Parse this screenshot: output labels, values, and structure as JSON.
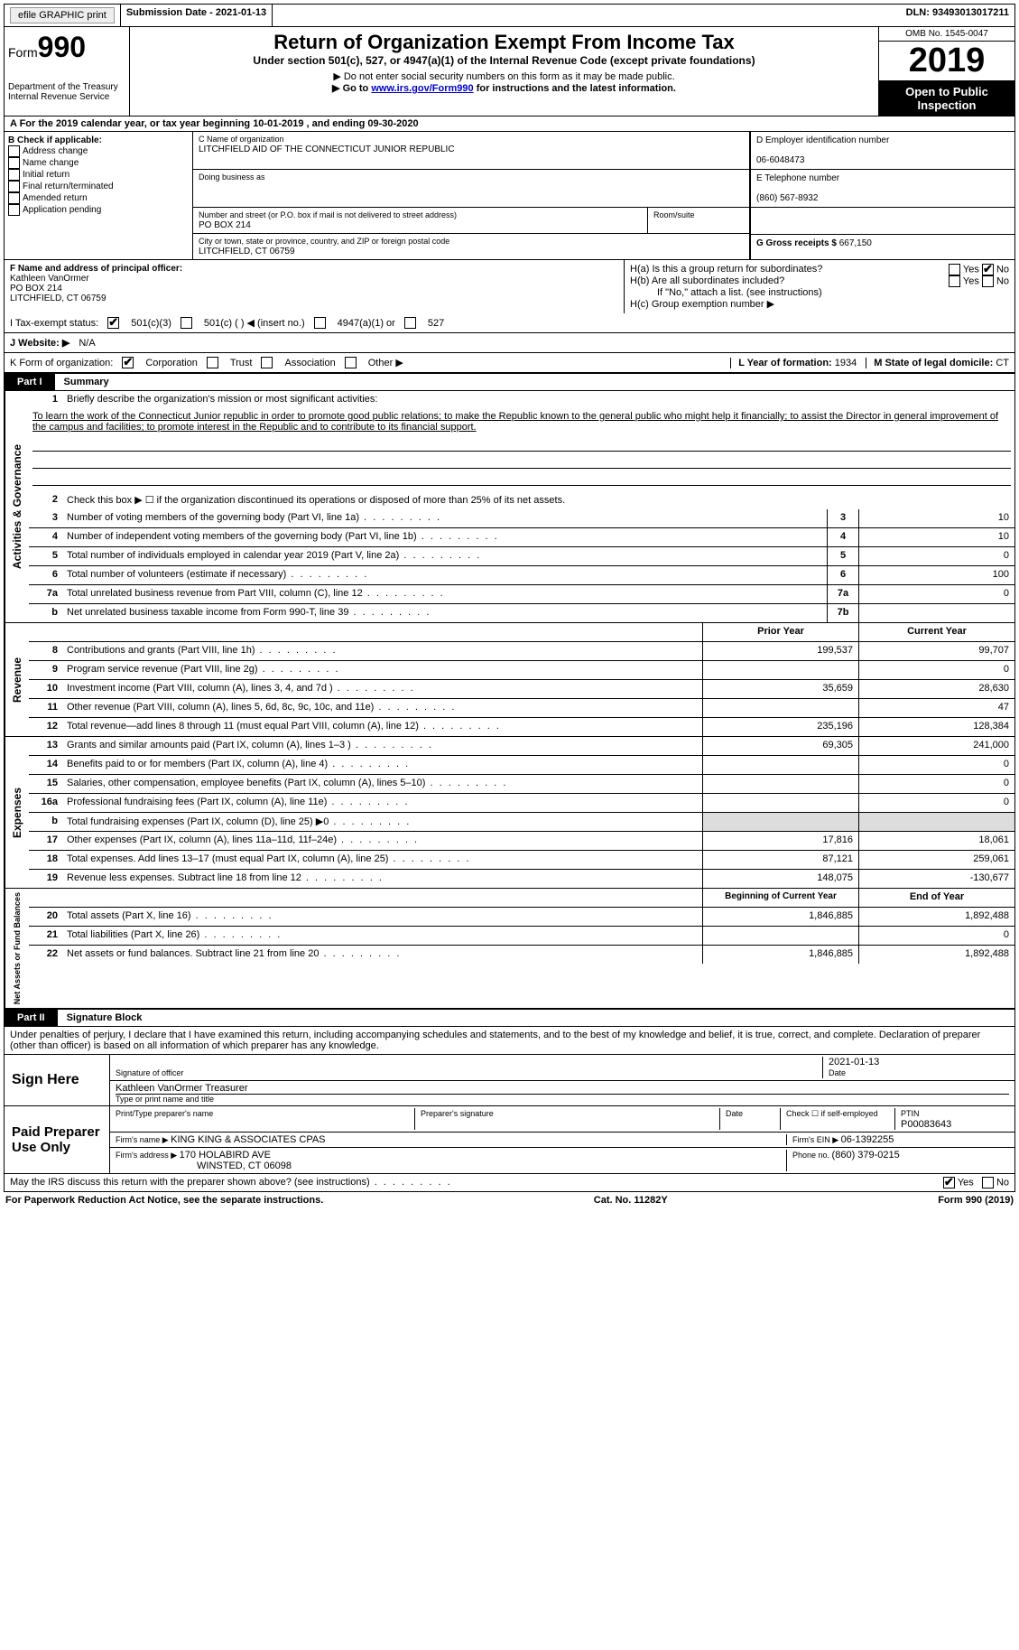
{
  "topbar": {
    "efile": "efile GRAPHIC print",
    "submission_label": "Submission Date - ",
    "submission_date": "2021-01-13",
    "dln_label": "DLN: ",
    "dln": "93493013017211"
  },
  "header": {
    "form_word": "Form",
    "form_num": "990",
    "dept": "Department of the Treasury\nInternal Revenue Service",
    "title": "Return of Organization Exempt From Income Tax",
    "subtitle": "Under section 501(c), 527, or 4947(a)(1) of the Internal Revenue Code (except private foundations)",
    "note1": "▶ Do not enter social security numbers on this form as it may be made public.",
    "note2_pre": "▶ Go to ",
    "note2_link": "www.irs.gov/Form990",
    "note2_post": " for instructions and the latest information.",
    "omb": "OMB No. 1545-0047",
    "year": "2019",
    "inspection": "Open to Public Inspection"
  },
  "rowA": "A For the 2019 calendar year, or tax year beginning 10-01-2019   , and ending 09-30-2020",
  "boxB": {
    "title": "B Check if applicable:",
    "items": [
      "Address change",
      "Name change",
      "Initial return",
      "Final return/terminated",
      "Amended return",
      "Application pending"
    ]
  },
  "boxC": {
    "label_name": "C Name of organization",
    "org_name": "LITCHFIELD AID OF THE CONNECTICUT JUNIOR REPUBLIC",
    "dba_label": "Doing business as",
    "addr_label": "Number and street (or P.O. box if mail is not delivered to street address)",
    "room_label": "Room/suite",
    "addr": "PO BOX 214",
    "city_label": "City or town, state or province, country, and ZIP or foreign postal code",
    "city": "LITCHFIELD, CT  06759"
  },
  "boxD": {
    "label": "D Employer identification number",
    "value": "06-6048473"
  },
  "boxE": {
    "label": "E Telephone number",
    "value": "(860) 567-8932"
  },
  "boxG": {
    "label": "G Gross receipts $ ",
    "value": "667,150"
  },
  "boxF": {
    "label": "F Name and address of principal officer:",
    "name": "Kathleen VanOrmer",
    "addr": "PO BOX 214",
    "city": "LITCHFIELD, CT  06759"
  },
  "boxH": {
    "ha": "H(a)  Is this a group return for subordinates?",
    "hb": "H(b)  Are all subordinates included?",
    "hnote": "If \"No,\" attach a list. (see instructions)",
    "hc": "H(c)  Group exemption number ▶",
    "yes": "Yes",
    "no": "No"
  },
  "taxexempt": {
    "label": "I   Tax-exempt status:",
    "o1": "501(c)(3)",
    "o2": "501(c) (  ) ◀ (insert no.)",
    "o3": "4947(a)(1) or",
    "o4": "527"
  },
  "website": {
    "label": "J   Website: ▶",
    "value": "N/A"
  },
  "korg": {
    "label": "K Form of organization:",
    "o1": "Corporation",
    "o2": "Trust",
    "o3": "Association",
    "o4": "Other ▶",
    "l_label": "L Year of formation: ",
    "l_val": "1934",
    "m_label": "M State of legal domicile: ",
    "m_val": "CT"
  },
  "part1": {
    "label": "Part I",
    "title": "Summary"
  },
  "summary": {
    "q1": "Briefly describe the organization's mission or most significant activities:",
    "mission": "To learn the work of the Connecticut Junior republic in order to promote good public relations; to make the Republic known to the general public who might help it financially; to assist the Director in general improvement of the campus and facilities; to promote interest in the Republic and to contribute to its financial support.",
    "q2": "Check this box ▶ ☐  if the organization discontinued its operations or disposed of more than 25% of its net assets.",
    "rows_single": [
      {
        "n": "3",
        "d": "Number of voting members of the governing body (Part VI, line 1a)",
        "b": "3",
        "v": "10"
      },
      {
        "n": "4",
        "d": "Number of independent voting members of the governing body (Part VI, line 1b)",
        "b": "4",
        "v": "10"
      },
      {
        "n": "5",
        "d": "Total number of individuals employed in calendar year 2019 (Part V, line 2a)",
        "b": "5",
        "v": "0"
      },
      {
        "n": "6",
        "d": "Total number of volunteers (estimate if necessary)",
        "b": "6",
        "v": "100"
      },
      {
        "n": "7a",
        "d": "Total unrelated business revenue from Part VIII, column (C), line 12",
        "b": "7a",
        "v": "0"
      },
      {
        "n": "b",
        "d": "Net unrelated business taxable income from Form 990-T, line 39",
        "b": "7b",
        "v": ""
      }
    ],
    "col_prior": "Prior Year",
    "col_current": "Current Year"
  },
  "revenue": [
    {
      "n": "8",
      "d": "Contributions and grants (Part VIII, line 1h)",
      "p": "199,537",
      "c": "99,707"
    },
    {
      "n": "9",
      "d": "Program service revenue (Part VIII, line 2g)",
      "p": "",
      "c": "0"
    },
    {
      "n": "10",
      "d": "Investment income (Part VIII, column (A), lines 3, 4, and 7d )",
      "p": "35,659",
      "c": "28,630"
    },
    {
      "n": "11",
      "d": "Other revenue (Part VIII, column (A), lines 5, 6d, 8c, 9c, 10c, and 11e)",
      "p": "",
      "c": "47"
    },
    {
      "n": "12",
      "d": "Total revenue—add lines 8 through 11 (must equal Part VIII, column (A), line 12)",
      "p": "235,196",
      "c": "128,384"
    }
  ],
  "expenses": [
    {
      "n": "13",
      "d": "Grants and similar amounts paid (Part IX, column (A), lines 1–3 )",
      "p": "69,305",
      "c": "241,000"
    },
    {
      "n": "14",
      "d": "Benefits paid to or for members (Part IX, column (A), line 4)",
      "p": "",
      "c": "0"
    },
    {
      "n": "15",
      "d": "Salaries, other compensation, employee benefits (Part IX, column (A), lines 5–10)",
      "p": "",
      "c": "0"
    },
    {
      "n": "16a",
      "d": "Professional fundraising fees (Part IX, column (A), line 11e)",
      "p": "",
      "c": "0"
    },
    {
      "n": "b",
      "d": "Total fundraising expenses (Part IX, column (D), line 25) ▶0",
      "p": "shaded",
      "c": "shaded"
    },
    {
      "n": "17",
      "d": "Other expenses (Part IX, column (A), lines 11a–11d, 11f–24e)",
      "p": "17,816",
      "c": "18,061"
    },
    {
      "n": "18",
      "d": "Total expenses. Add lines 13–17 (must equal Part IX, column (A), line 25)",
      "p": "87,121",
      "c": "259,061"
    },
    {
      "n": "19",
      "d": "Revenue less expenses. Subtract line 18 from line 12",
      "p": "148,075",
      "c": "-130,677"
    }
  ],
  "netassets": {
    "col_begin": "Beginning of Current Year",
    "col_end": "End of Year",
    "rows": [
      {
        "n": "20",
        "d": "Total assets (Part X, line 16)",
        "p": "1,846,885",
        "c": "1,892,488"
      },
      {
        "n": "21",
        "d": "Total liabilities (Part X, line 26)",
        "p": "",
        "c": "0"
      },
      {
        "n": "22",
        "d": "Net assets or fund balances. Subtract line 21 from line 20",
        "p": "1,846,885",
        "c": "1,892,488"
      }
    ]
  },
  "part2": {
    "label": "Part II",
    "title": "Signature Block"
  },
  "sig": {
    "declaration": "Under penalties of perjury, I declare that I have examined this return, including accompanying schedules and statements, and to the best of my knowledge and belief, it is true, correct, and complete. Declaration of preparer (other than officer) is based on all information of which preparer has any knowledge.",
    "sign_here": "Sign Here",
    "sig_officer": "Signature of officer",
    "date": "Date",
    "sig_date": "2021-01-13",
    "name_title": "Kathleen VanOrmer  Treasurer",
    "type_label": "Type or print name and title",
    "paid": "Paid Preparer Use Only",
    "pt_preparer": "Print/Type preparer's name",
    "pt_sig": "Preparer's signature",
    "pt_date": "Date",
    "pt_check": "Check ☐ if self-employed",
    "ptin_label": "PTIN",
    "ptin": "P00083643",
    "firm_name_label": "Firm's name    ▶ ",
    "firm_name": "KING KING & ASSOCIATES CPAS",
    "firm_ein_label": "Firm's EIN ▶ ",
    "firm_ein": "06-1392255",
    "firm_addr_label": "Firm's address ▶ ",
    "firm_addr": "170 HOLABIRD AVE",
    "firm_city": "WINSTED, CT  06098",
    "phone_label": "Phone no. ",
    "phone": "(860) 379-0215",
    "discuss": "May the IRS discuss this return with the preparer shown above? (see instructions)"
  },
  "footer": {
    "left": "For Paperwork Reduction Act Notice, see the separate instructions.",
    "mid": "Cat. No. 11282Y",
    "right": "Form 990 (2019)"
  },
  "vtabs": {
    "gov": "Activities & Governance",
    "rev": "Revenue",
    "exp": "Expenses",
    "net": "Net Assets or Fund Balances"
  }
}
